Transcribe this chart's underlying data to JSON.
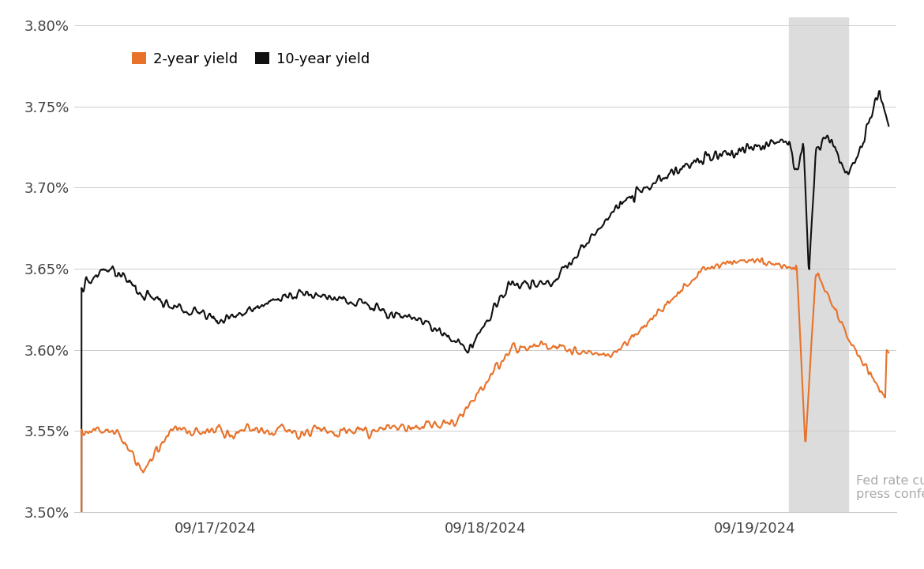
{
  "ylim": [
    3.5,
    3.805
  ],
  "yticks": [
    3.5,
    3.55,
    3.6,
    3.65,
    3.7,
    3.75,
    3.8
  ],
  "xtick_labels": [
    "09/17/2024",
    "09/18/2024",
    "09/19/2024"
  ],
  "color_2yr": "#E8722A",
  "color_10yr": "#111111",
  "shade_color": "#DCDCDC",
  "annotation_text": "Fed rate cut/\npress conference",
  "annotation_color": "#AAAAAA",
  "legend_2yr": "2-year yield",
  "legend_10yr": "10-year yield",
  "background_color": "#FFFFFF",
  "grid_color": "#CCCCCC"
}
